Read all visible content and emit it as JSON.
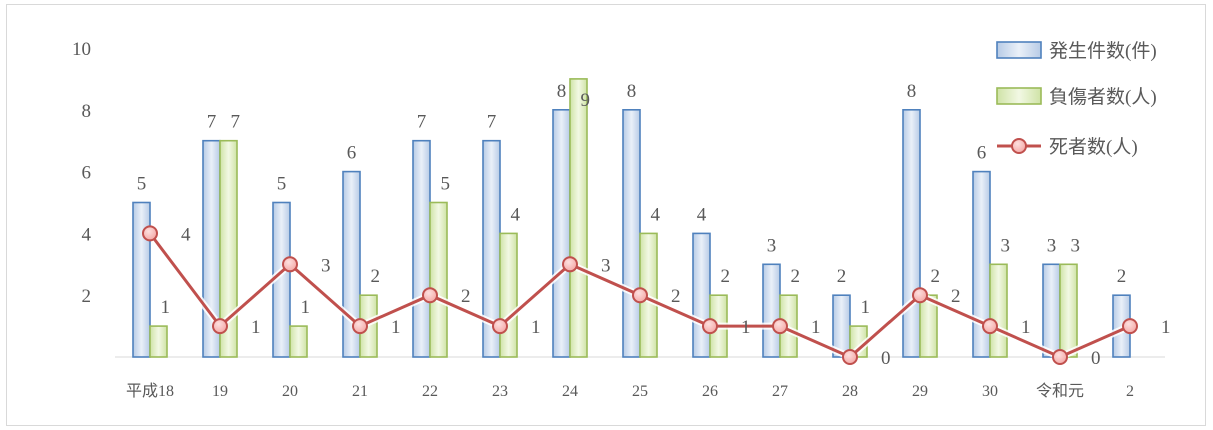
{
  "chart_data": {
    "type": "bar",
    "categories": [
      "平成18",
      "19",
      "20",
      "21",
      "22",
      "23",
      "24",
      "25",
      "26",
      "27",
      "28",
      "29",
      "30",
      "令和元",
      "2"
    ],
    "series": [
      {
        "name": "発生件数(件)",
        "kind": "bar",
        "color": "#4f81bd",
        "values": [
          5,
          7,
          5,
          6,
          7,
          7,
          8,
          8,
          4,
          3,
          2,
          8,
          6,
          3,
          2
        ]
      },
      {
        "name": "負傷者数(人)",
        "kind": "bar",
        "color": "#9bbb59",
        "values": [
          1,
          7,
          1,
          2,
          5,
          4,
          9,
          4,
          2,
          2,
          1,
          2,
          3,
          3,
          null
        ]
      },
      {
        "name": "死者数(人)",
        "kind": "line",
        "color": "#c0504d",
        "values": [
          4,
          1,
          3,
          1,
          2,
          1,
          3,
          2,
          1,
          1,
          0,
          2,
          1,
          0,
          1
        ]
      }
    ],
    "yticks": [
      "2",
      "4",
      "6",
      "8",
      "10"
    ],
    "ylim": [
      0,
      10
    ],
    "grid": false,
    "legend_position": "top-right"
  }
}
